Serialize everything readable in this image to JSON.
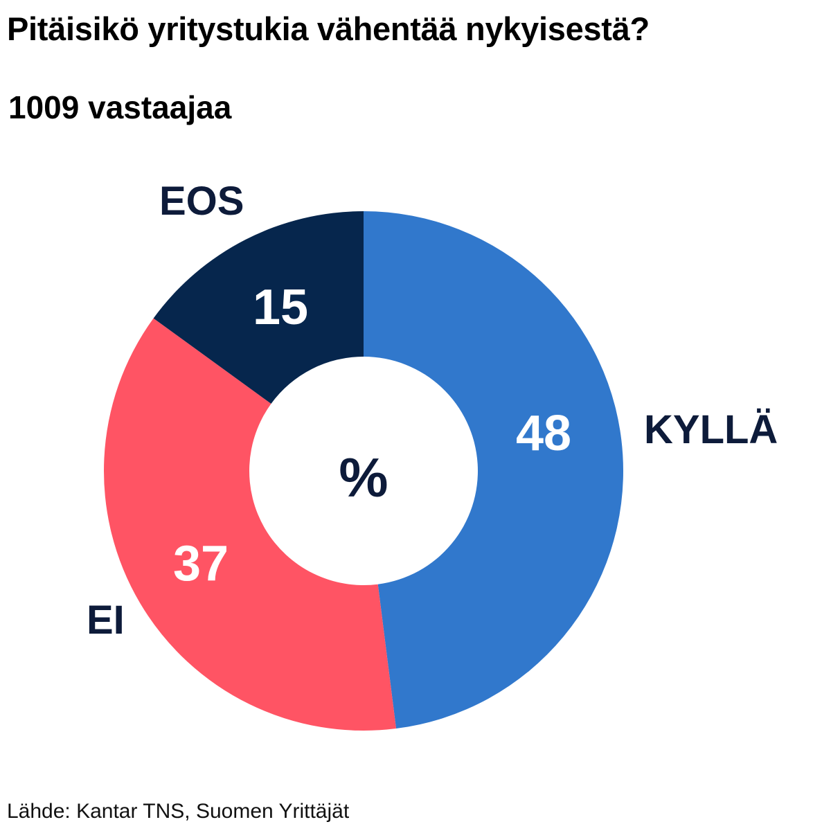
{
  "title": "Pitäisikö yritystukia vähentää nykyisestä?",
  "subtitle": "1009 vastaajaa",
  "source": "Lähde: Kantar TNS, Suomen Yrittäjät",
  "center_label": "%",
  "chart_data": {
    "type": "pie",
    "style": "donut",
    "unit": "%",
    "slices": [
      {
        "label": "KYLLÄ",
        "value": 48,
        "color": "#3178cc"
      },
      {
        "label": "EI",
        "value": 37,
        "color": "#ff5464"
      },
      {
        "label": "EOS",
        "value": 15,
        "color": "#06264d"
      }
    ],
    "value_label_color": "#ffffff",
    "category_label_color": "#0d1b3a"
  }
}
